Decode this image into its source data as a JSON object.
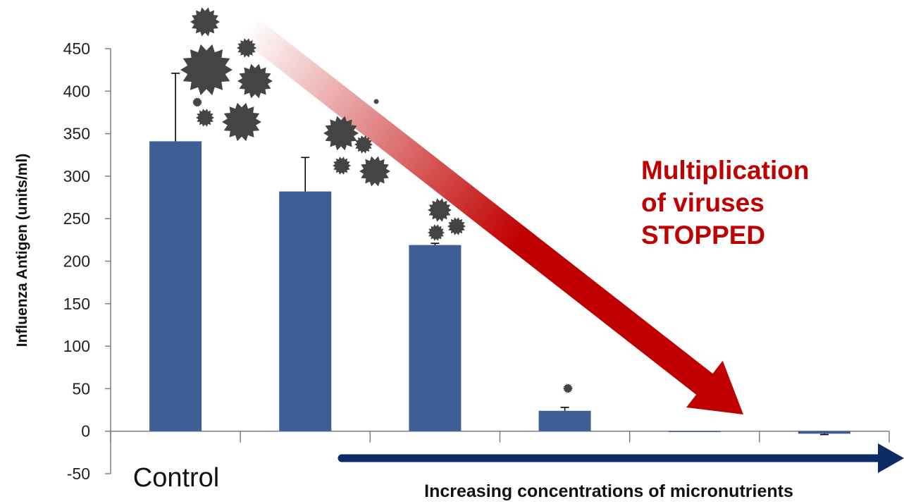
{
  "chart_data": {
    "type": "bar",
    "title": "",
    "ylabel": "Influenza Antigen (units/ml)",
    "xlabel": "Increasing concentrations of micronutrients",
    "ylim": [
      -50,
      450
    ],
    "yticks": [
      -50,
      0,
      50,
      100,
      150,
      200,
      250,
      300,
      350,
      400,
      450
    ],
    "categories": [
      "Control",
      "",
      "",
      "",
      "",
      ""
    ],
    "values": [
      341,
      282,
      219,
      24,
      -1,
      -3
    ],
    "error_bars": [
      80,
      40,
      2,
      4,
      0,
      1
    ],
    "grid": false,
    "legend": "none",
    "annotations": [
      {
        "lines": [
          "Multiplication",
          "of viruses",
          "STOPPED"
        ],
        "color": "#c00000"
      }
    ],
    "colors": {
      "bar": "#3f5e96",
      "axis": "#7f7f7f",
      "red_arrow": "#c00000",
      "blue_arrow": "#0b2a66",
      "virus": "#444444"
    }
  }
}
